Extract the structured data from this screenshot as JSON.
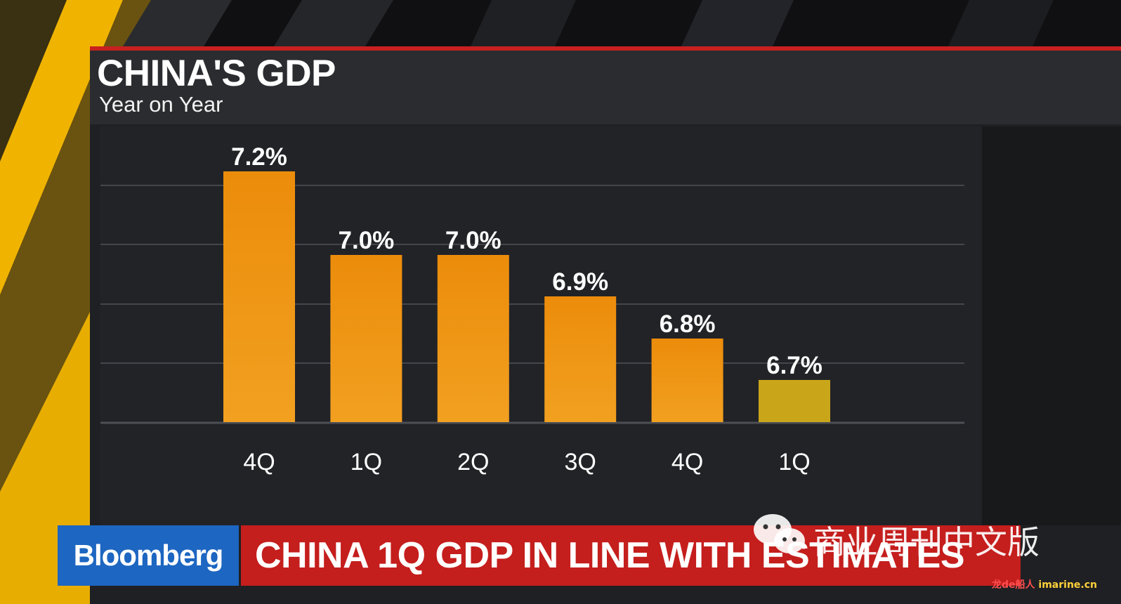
{
  "chart_data": {
    "type": "bar",
    "title": "CHINA'S GDP",
    "subtitle": "Year on Year",
    "categories": [
      "4Q",
      "1Q",
      "2Q",
      "3Q",
      "4Q",
      "1Q"
    ],
    "values": [
      7.2,
      7.0,
      7.0,
      6.9,
      6.8,
      6.7
    ],
    "value_labels": [
      "7.2%",
      "7.0%",
      "7.0%",
      "6.9%",
      "6.8%",
      "6.7%"
    ],
    "ylim": [
      6.6,
      7.3
    ],
    "grid": true,
    "colors": {
      "bar": "#ec8c0b",
      "bar_bottom": "#f2a020",
      "highlight_bar": "#c9a619",
      "gridline": "#44464b",
      "baseline": "#4d4f54"
    },
    "highlight_index": 5
  },
  "brand": {
    "logo": "Bloomberg",
    "ticker": "CHINA 1Q GDP IN LINE WITH ESTIMATES"
  },
  "watermark": {
    "text": "商业周刊中文版",
    "corner_red": "龙de船人",
    "corner_yellow": "imarine.cn"
  },
  "theme": {
    "accent_red": "#c41e1d",
    "brand_blue": "#1d66c1",
    "stripe_yellow": "#f0b400"
  }
}
